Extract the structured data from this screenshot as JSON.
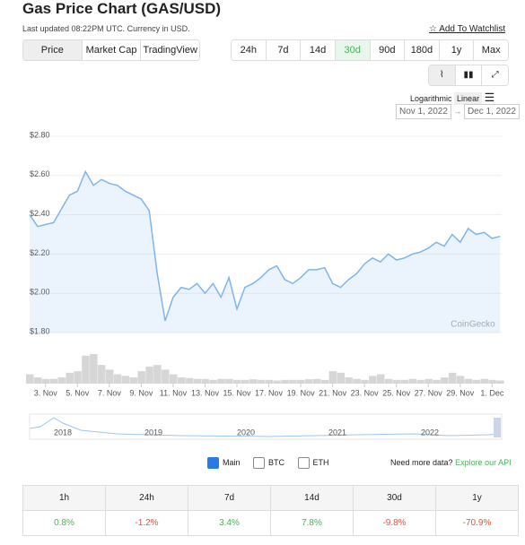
{
  "header": {
    "title": "Gas Price Chart (GAS/USD)",
    "updated": "Last updated 08:22PM UTC. Currency in USD.",
    "watchlist": "Add To Watchlist"
  },
  "tabs": [
    "Price",
    "Market Cap",
    "TradingView"
  ],
  "ranges": [
    "24h",
    "7d",
    "14d",
    "30d",
    "90d",
    "180d",
    "1y",
    "Max"
  ],
  "scale": [
    "Logarithmic",
    "Linear"
  ],
  "date_from": "Nov 1, 2022",
  "date_to": "Dec 1, 2022",
  "watermark": "CoinGecko",
  "chart_data": {
    "type": "line",
    "color": "#7cb5ec",
    "x": [
      2,
      2.5,
      3,
      3.5,
      4,
      4.5,
      5,
      5.5,
      6,
      6.5,
      7,
      7.5,
      8,
      8.5,
      9,
      9.5,
      10,
      10.5,
      11,
      11.5,
      12,
      12.5,
      13,
      13.5,
      14,
      14.5,
      15,
      15.5,
      16,
      16.5,
      17,
      17.5,
      18,
      18.5,
      19,
      19.5,
      20,
      20.5,
      21,
      21.5,
      22,
      22.5,
      23,
      23.5,
      24,
      24.5,
      25,
      25.5,
      26,
      26.5,
      27,
      27.5,
      28,
      28.5,
      29,
      29.5,
      30,
      30.5,
      31,
      31.5
    ],
    "values": [
      2.4,
      2.34,
      2.35,
      2.36,
      2.43,
      2.5,
      2.52,
      2.62,
      2.55,
      2.58,
      2.56,
      2.55,
      2.52,
      2.5,
      2.48,
      2.42,
      2.1,
      1.86,
      1.98,
      2.03,
      2.02,
      2.05,
      2.0,
      2.05,
      1.98,
      2.08,
      1.92,
      2.03,
      2.05,
      2.08,
      2.12,
      2.14,
      2.07,
      2.05,
      2.08,
      2.12,
      2.12,
      2.13,
      2.05,
      2.03,
      2.07,
      2.1,
      2.15,
      2.18,
      2.16,
      2.2,
      2.17,
      2.18,
      2.2,
      2.21,
      2.23,
      2.26,
      2.24,
      2.3,
      2.26,
      2.33,
      2.3,
      2.31,
      2.28,
      2.29
    ],
    "volume": [
      30,
      20,
      15,
      15,
      20,
      35,
      40,
      90,
      95,
      60,
      45,
      30,
      25,
      20,
      40,
      55,
      60,
      45,
      30,
      20,
      18,
      15,
      15,
      12,
      15,
      15,
      12,
      12,
      14,
      12,
      12,
      10,
      12,
      12,
      12,
      14,
      15,
      12,
      40,
      35,
      20,
      15,
      12,
      25,
      30,
      15,
      12,
      12,
      15,
      12,
      15,
      12,
      20,
      35,
      25,
      15,
      12,
      15,
      12,
      10
    ],
    "xlim": [
      2,
      31.6
    ],
    "xticks": [
      {
        "value": 3,
        "label": "3. Nov"
      },
      {
        "value": 5,
        "label": "5. Nov"
      },
      {
        "value": 7,
        "label": "7. Nov"
      },
      {
        "value": 9,
        "label": "9. Nov"
      },
      {
        "value": 11,
        "label": "11. Nov"
      },
      {
        "value": 13,
        "label": "13. Nov"
      },
      {
        "value": 15,
        "label": "15. Nov"
      },
      {
        "value": 17,
        "label": "17. Nov"
      },
      {
        "value": 19,
        "label": "19. Nov"
      },
      {
        "value": 21,
        "label": "21. Nov"
      },
      {
        "value": 23,
        "label": "23. Nov"
      },
      {
        "value": 25,
        "label": "25. Nov"
      },
      {
        "value": 27,
        "label": "27. Nov"
      },
      {
        "value": 29,
        "label": "29. Nov"
      },
      {
        "value": 31,
        "label": "1. Dec"
      }
    ],
    "ylim": [
      1.8,
      2.8
    ],
    "yticks": [
      {
        "value": 1.8,
        "label": "$1.80"
      },
      {
        "value": 2.0,
        "label": "$2.00"
      },
      {
        "value": 2.2,
        "label": "$2.20"
      },
      {
        "value": 2.4,
        "label": "$2.40"
      },
      {
        "value": 2.6,
        "label": "$2.60"
      },
      {
        "value": 2.8,
        "label": "$2.80"
      }
    ],
    "grid": true
  },
  "navigator_years": [
    "2018",
    "2019",
    "2020",
    "2021",
    "2022"
  ],
  "legend": [
    "Main",
    "BTC",
    "ETH"
  ],
  "more_data": "Need more data?",
  "api": "Explore our API",
  "table": {
    "header": [
      "1h",
      "24h",
      "7d",
      "14d",
      "30d",
      "1y"
    ],
    "rows": [
      [
        "0.8%",
        "-1.2%",
        "3.4%",
        "7.8%",
        "-9.8%",
        "-70.9%"
      ]
    ]
  }
}
